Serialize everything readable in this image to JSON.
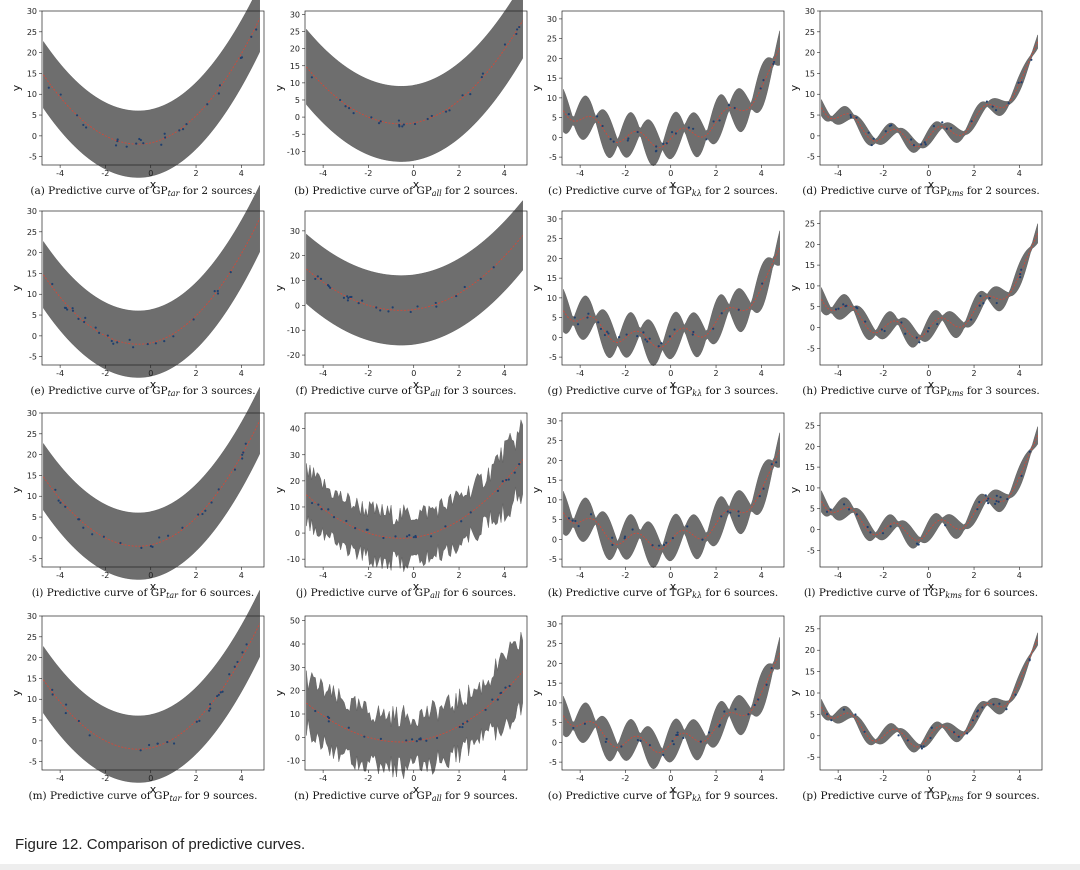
{
  "figure_caption": "Figure 12. Comparison of predictive curves.",
  "colors": {
    "band": "#6e6e6e",
    "mean": "#d04a3a",
    "points": "#1f3f6e",
    "axes": "#222222"
  },
  "chart_data": [
    {
      "type": "line",
      "model": "GP_tar",
      "caption_label": "(a)",
      "caption_prefix": "Predictive curve of GP",
      "caption_sub": "tar",
      "caption_suffix": " for 2 sources.",
      "xlabel": "x",
      "ylabel": "y",
      "xlim": [
        -4.8,
        5
      ],
      "ylim": [
        -7,
        30
      ],
      "x_ticks": [
        -4,
        -2,
        0,
        2,
        4
      ],
      "y_ticks": [
        -5,
        0,
        5,
        10,
        15,
        20,
        25,
        30
      ],
      "band_half_width": [
        8,
        8
      ]
    },
    {
      "type": "line",
      "model": "GP_all",
      "caption_label": "(b)",
      "caption_prefix": "Predictive curve of GP",
      "caption_sub": "all",
      "caption_suffix": " for 2 sources.",
      "xlabel": "x",
      "ylabel": "y",
      "xlim": [
        -4.8,
        5
      ],
      "ylim": [
        -14,
        31
      ],
      "x_ticks": [
        -4,
        -2,
        0,
        2,
        4
      ],
      "y_ticks": [
        -10,
        -5,
        0,
        5,
        10,
        15,
        20,
        25,
        30
      ],
      "band_half_width": [
        11,
        11
      ]
    },
    {
      "type": "line",
      "model": "TGP_k",
      "caption_label": "(c)",
      "caption_prefix": "Predictive curve of TGP",
      "caption_sub": "kλ",
      "caption_suffix": " for 2 sources.",
      "xlabel": "x",
      "ylabel": "y",
      "xlim": [
        -4.8,
        5
      ],
      "ylim": [
        -7,
        32
      ],
      "x_ticks": [
        -4,
        -2,
        0,
        2,
        4
      ],
      "y_ticks": [
        -5,
        0,
        5,
        10,
        15,
        20,
        25,
        30
      ],
      "band_half_width": [
        0.5,
        5
      ]
    },
    {
      "type": "line",
      "model": "TGP_kms",
      "caption_label": "(d)",
      "caption_prefix": "Predictive curve of TGP",
      "caption_sub": "kms",
      "caption_suffix": " for 2 sources.",
      "xlabel": "x",
      "ylabel": "y",
      "xlim": [
        -4.8,
        5
      ],
      "ylim": [
        -7,
        30
      ],
      "x_ticks": [
        -4,
        -2,
        0,
        2,
        4
      ],
      "y_ticks": [
        -5,
        0,
        5,
        10,
        15,
        20,
        25,
        30
      ],
      "band_half_width": [
        0.4,
        1.6
      ]
    },
    {
      "type": "line",
      "model": "GP_tar",
      "caption_label": "(e)",
      "caption_prefix": "Predictive curve of GP",
      "caption_sub": "tar",
      "caption_suffix": " for 3 sources.",
      "xlabel": "x",
      "ylabel": "y",
      "xlim": [
        -4.8,
        5
      ],
      "ylim": [
        -7,
        30
      ],
      "x_ticks": [
        -4,
        -2,
        0,
        2,
        4
      ],
      "y_ticks": [
        -5,
        0,
        5,
        10,
        15,
        20,
        25,
        30
      ],
      "band_half_width": [
        8,
        8
      ]
    },
    {
      "type": "line",
      "model": "GP_all",
      "caption_label": "(f)",
      "caption_prefix": "Predictive curve of GP",
      "caption_sub": "all",
      "caption_suffix": " for 3 sources.",
      "xlabel": "x",
      "ylabel": "y",
      "xlim": [
        -4.8,
        5
      ],
      "ylim": [
        -24,
        38
      ],
      "x_ticks": [
        -4,
        -2,
        0,
        2,
        4
      ],
      "y_ticks": [
        -20,
        -10,
        0,
        10,
        20,
        30
      ],
      "band_half_width": [
        14,
        14
      ]
    },
    {
      "type": "line",
      "model": "TGP_k",
      "caption_label": "(g)",
      "caption_prefix": "Predictive curve of TGP",
      "caption_sub": "kλ",
      "caption_suffix": " for 3 sources.",
      "xlabel": "x",
      "ylabel": "y",
      "xlim": [
        -4.8,
        5
      ],
      "ylim": [
        -7,
        32
      ],
      "x_ticks": [
        -4,
        -2,
        0,
        2,
        4
      ],
      "y_ticks": [
        -5,
        0,
        5,
        10,
        15,
        20,
        25,
        30
      ],
      "band_half_width": [
        0.5,
        5
      ]
    },
    {
      "type": "line",
      "model": "TGP_kms",
      "caption_label": "(h)",
      "caption_prefix": "Predictive curve of TGP",
      "caption_sub": "kms",
      "caption_suffix": " for 3 sources.",
      "xlabel": "x",
      "ylabel": "y",
      "xlim": [
        -4.8,
        5
      ],
      "ylim": [
        -9,
        28
      ],
      "x_ticks": [
        -4,
        -2,
        0,
        2,
        4
      ],
      "y_ticks": [
        -5,
        0,
        5,
        10,
        15,
        20,
        25
      ],
      "band_half_width": [
        0.4,
        2.5
      ]
    },
    {
      "type": "line",
      "model": "GP_tar",
      "caption_label": "(i)",
      "caption_prefix": "Predictive curve of GP",
      "caption_sub": "tar",
      "caption_suffix": " for 6 sources.",
      "xlabel": "x",
      "ylabel": "y",
      "xlim": [
        -4.8,
        5
      ],
      "ylim": [
        -7,
        30
      ],
      "x_ticks": [
        -4,
        -2,
        0,
        2,
        4
      ],
      "y_ticks": [
        -5,
        0,
        5,
        10,
        15,
        20,
        25,
        30
      ],
      "band_half_width": [
        8,
        8
      ]
    },
    {
      "type": "line",
      "model": "GP_all",
      "caption_label": "(j)",
      "caption_prefix": "Predictive curve of GP",
      "caption_sub": "all",
      "caption_suffix": " for 6 sources.",
      "xlabel": "x",
      "ylabel": "y",
      "xlim": [
        -4.8,
        5
      ],
      "ylim": [
        -13,
        46
      ],
      "x_ticks": [
        -4,
        -2,
        0,
        2,
        4
      ],
      "y_ticks": [
        -10,
        0,
        10,
        20,
        30,
        40
      ],
      "band_half_width": [
        9,
        9
      ],
      "jagged": true
    },
    {
      "type": "line",
      "model": "TGP_k",
      "caption_label": "(k)",
      "caption_prefix": "Predictive curve of TGP",
      "caption_sub": "kλ",
      "caption_suffix": " for 6 sources.",
      "xlabel": "x",
      "ylabel": "y",
      "xlim": [
        -4.8,
        5
      ],
      "ylim": [
        -7,
        32
      ],
      "x_ticks": [
        -4,
        -2,
        0,
        2,
        4
      ],
      "y_ticks": [
        -5,
        0,
        5,
        10,
        15,
        20,
        25,
        30
      ],
      "band_half_width": [
        0.5,
        5
      ]
    },
    {
      "type": "line",
      "model": "TGP_kms",
      "caption_label": "(l)",
      "caption_prefix": "Predictive curve of TGP",
      "caption_sub": "kms",
      "caption_suffix": " for 6 sources.",
      "xlabel": "x",
      "ylabel": "y",
      "xlim": [
        -4.8,
        5
      ],
      "ylim": [
        -9,
        28
      ],
      "x_ticks": [
        -4,
        -2,
        0,
        2,
        4
      ],
      "y_ticks": [
        -5,
        0,
        5,
        10,
        15,
        20,
        25
      ],
      "band_half_width": [
        0.4,
        2.2
      ]
    },
    {
      "type": "line",
      "model": "GP_tar",
      "caption_label": "(m)",
      "caption_prefix": "Predictive curve of GP",
      "caption_sub": "tar",
      "caption_suffix": " for 9 sources.",
      "xlabel": "x",
      "ylabel": "y",
      "xlim": [
        -4.8,
        5
      ],
      "ylim": [
        -7,
        30
      ],
      "x_ticks": [
        -4,
        -2,
        0,
        2,
        4
      ],
      "y_ticks": [
        -5,
        0,
        5,
        10,
        15,
        20,
        25,
        30
      ],
      "band_half_width": [
        8,
        8
      ]
    },
    {
      "type": "line",
      "model": "GP_all",
      "caption_label": "(n)",
      "caption_prefix": "Predictive curve of GP",
      "caption_sub": "all",
      "caption_suffix": " for 9 sources.",
      "xlabel": "x",
      "ylabel": "y",
      "xlim": [
        -4.8,
        5
      ],
      "ylim": [
        -14,
        52
      ],
      "x_ticks": [
        -4,
        -2,
        0,
        2,
        4
      ],
      "y_ticks": [
        -10,
        0,
        10,
        20,
        30,
        40,
        50
      ],
      "band_half_width": [
        11,
        11
      ],
      "jagged": true
    },
    {
      "type": "line",
      "model": "TGP_k",
      "caption_label": "(o)",
      "caption_prefix": "Predictive curve of TGP",
      "caption_sub": "kλ",
      "caption_suffix": " for 9 sources.",
      "xlabel": "x",
      "ylabel": "y",
      "xlim": [
        -4.8,
        5
      ],
      "ylim": [
        -7,
        32
      ],
      "x_ticks": [
        -4,
        -2,
        0,
        2,
        4
      ],
      "y_ticks": [
        -5,
        0,
        5,
        10,
        15,
        20,
        25,
        30
      ],
      "band_half_width": [
        0.5,
        4.5
      ]
    },
    {
      "type": "line",
      "model": "TGP_kms",
      "caption_label": "(p)",
      "caption_prefix": "Predictive curve of TGP",
      "caption_sub": "kms",
      "caption_suffix": " for 9 sources.",
      "xlabel": "x",
      "ylabel": "y",
      "xlim": [
        -4.8,
        5
      ],
      "ylim": [
        -8,
        28
      ],
      "x_ticks": [
        -4,
        -2,
        0,
        2,
        4
      ],
      "y_ticks": [
        -5,
        0,
        5,
        10,
        15,
        20,
        25
      ],
      "band_half_width": [
        0.3,
        1.5
      ]
    }
  ]
}
